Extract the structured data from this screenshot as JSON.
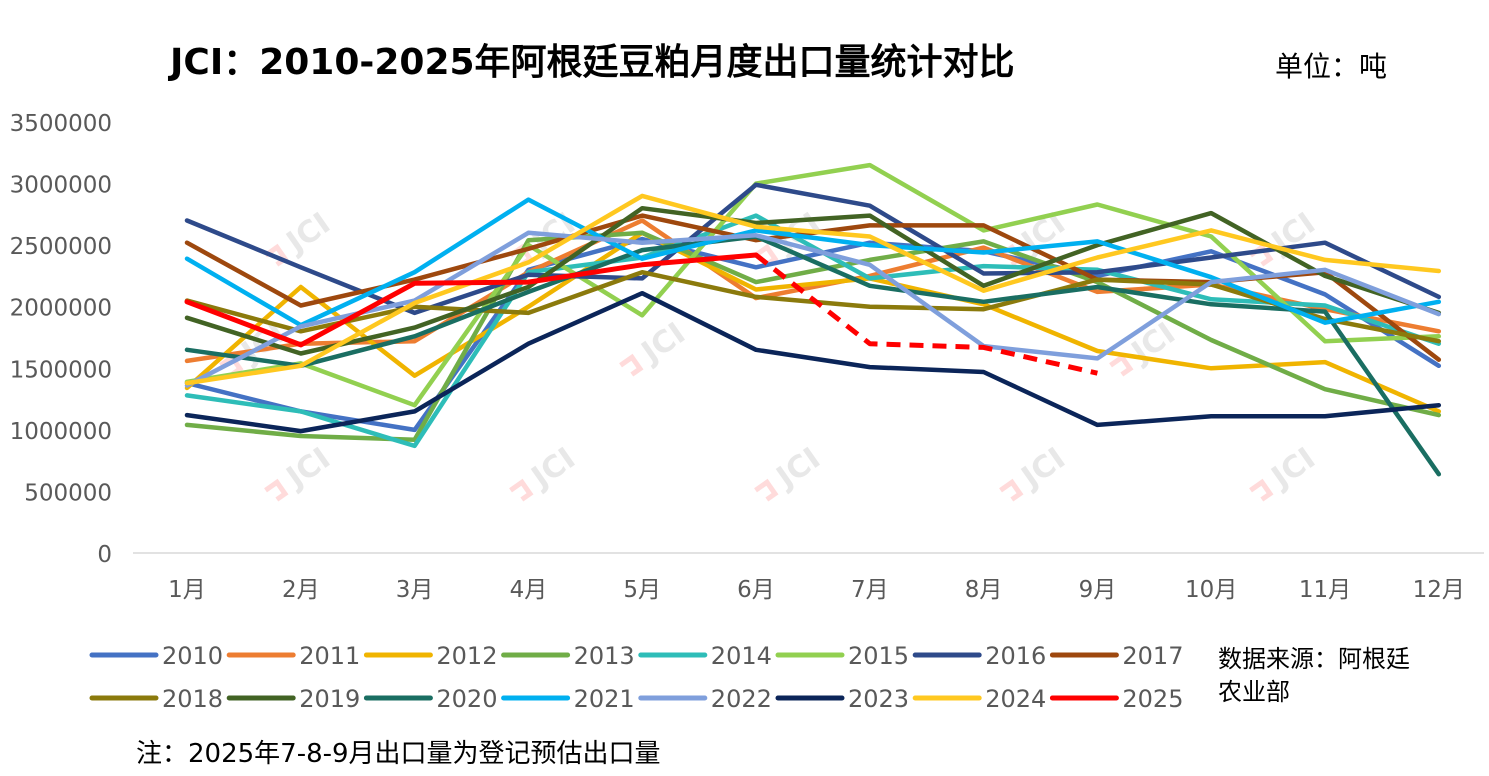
{
  "chart_data": {
    "type": "line",
    "title": "JCI：2010-2025年阿根廷豆粕月度出口量统计对比",
    "unit_label": "单位：吨",
    "source_label": "数据来源：阿根廷农业部",
    "note": "注：2025年7-8-9月出口量为登记预估出口量",
    "watermark": "JCI",
    "categories": [
      "1月",
      "2月",
      "3月",
      "4月",
      "5月",
      "6月",
      "7月",
      "8月",
      "9月",
      "10月",
      "11月",
      "12月"
    ],
    "ylim": [
      0,
      3500000
    ],
    "yticks": [
      0,
      500000,
      1000000,
      1500000,
      2000000,
      2500000,
      3000000,
      3500000
    ],
    "ytick_labels": [
      "0",
      "500000",
      "1000000",
      "1500000",
      "2000000",
      "2500000",
      "3000000",
      "3500000"
    ],
    "series": [
      {
        "name": "2010",
        "color": "#4472C4",
        "values": [
          1380000,
          1150000,
          1000000,
          2300000,
          2550000,
          2320000,
          2520000,
          2450000,
          2250000,
          2450000,
          2100000,
          1520000
        ]
      },
      {
        "name": "2011",
        "color": "#ED7D31",
        "values": [
          1560000,
          1700000,
          1720000,
          2280000,
          2700000,
          2070000,
          2250000,
          2480000,
          2120000,
          2180000,
          1980000,
          1800000
        ]
      },
      {
        "name": "2012",
        "color": "#F0B400",
        "values": [
          1340000,
          2160000,
          1440000,
          2000000,
          2600000,
          2140000,
          2230000,
          2020000,
          1640000,
          1500000,
          1550000,
          1150000
        ]
      },
      {
        "name": "2013",
        "color": "#70AD47",
        "values": [
          1040000,
          950000,
          920000,
          2540000,
          2600000,
          2200000,
          2380000,
          2530000,
          2200000,
          1730000,
          1330000,
          1120000
        ]
      },
      {
        "name": "2014",
        "color": "#2EBDB8",
        "values": [
          1280000,
          1150000,
          870000,
          2280000,
          2400000,
          2740000,
          2230000,
          2330000,
          2300000,
          2060000,
          2010000,
          1700000
        ]
      },
      {
        "name": "2015",
        "color": "#92D050",
        "values": [
          1390000,
          1540000,
          1200000,
          2500000,
          1930000,
          3000000,
          3150000,
          2620000,
          2830000,
          2570000,
          1720000,
          1760000
        ]
      },
      {
        "name": "2016",
        "color": "#2E4A8A",
        "values": [
          2700000,
          2320000,
          1950000,
          2260000,
          2230000,
          2990000,
          2820000,
          2270000,
          2280000,
          2400000,
          2520000,
          2080000
        ]
      },
      {
        "name": "2017",
        "color": "#9E480E",
        "values": [
          2520000,
          2010000,
          2220000,
          2470000,
          2740000,
          2540000,
          2660000,
          2660000,
          2220000,
          2200000,
          2280000,
          1570000
        ]
      },
      {
        "name": "2018",
        "color": "#8B7A0C",
        "values": [
          2050000,
          1800000,
          2000000,
          1950000,
          2280000,
          2080000,
          2000000,
          1980000,
          2220000,
          2180000,
          1900000,
          1720000
        ]
      },
      {
        "name": "2019",
        "color": "#426324",
        "values": [
          1910000,
          1620000,
          1830000,
          2160000,
          2800000,
          2680000,
          2740000,
          2170000,
          2500000,
          2760000,
          2250000,
          1950000
        ]
      },
      {
        "name": "2020",
        "color": "#1A6E62",
        "values": [
          1650000,
          1520000,
          1760000,
          2120000,
          2460000,
          2570000,
          2170000,
          2040000,
          2160000,
          2020000,
          1960000,
          640000
        ]
      },
      {
        "name": "2021",
        "color": "#00B0F0",
        "values": [
          2390000,
          1850000,
          2280000,
          2870000,
          2390000,
          2620000,
          2500000,
          2440000,
          2530000,
          2240000,
          1870000,
          2040000
        ]
      },
      {
        "name": "2022",
        "color": "#7F9FDC",
        "values": [
          1360000,
          1840000,
          2050000,
          2600000,
          2520000,
          2580000,
          2340000,
          1680000,
          1580000,
          2200000,
          2300000,
          1940000
        ]
      },
      {
        "name": "2023",
        "color": "#0B2559",
        "values": [
          1120000,
          990000,
          1150000,
          1700000,
          2110000,
          1650000,
          1510000,
          1470000,
          1040000,
          1110000,
          1110000,
          1200000
        ]
      },
      {
        "name": "2024",
        "color": "#FFC820",
        "values": [
          1380000,
          1520000,
          2030000,
          2360000,
          2900000,
          2650000,
          2570000,
          2130000,
          2400000,
          2620000,
          2380000,
          2290000
        ]
      },
      {
        "name": "2025",
        "color": "#FF0000",
        "values": [
          2040000,
          1690000,
          2190000,
          2200000,
          2340000,
          2420000,
          1700000,
          1670000,
          1460000,
          null,
          null,
          null
        ],
        "dashed_from_index": 5
      }
    ],
    "legend": {
      "position": "bottom"
    }
  }
}
